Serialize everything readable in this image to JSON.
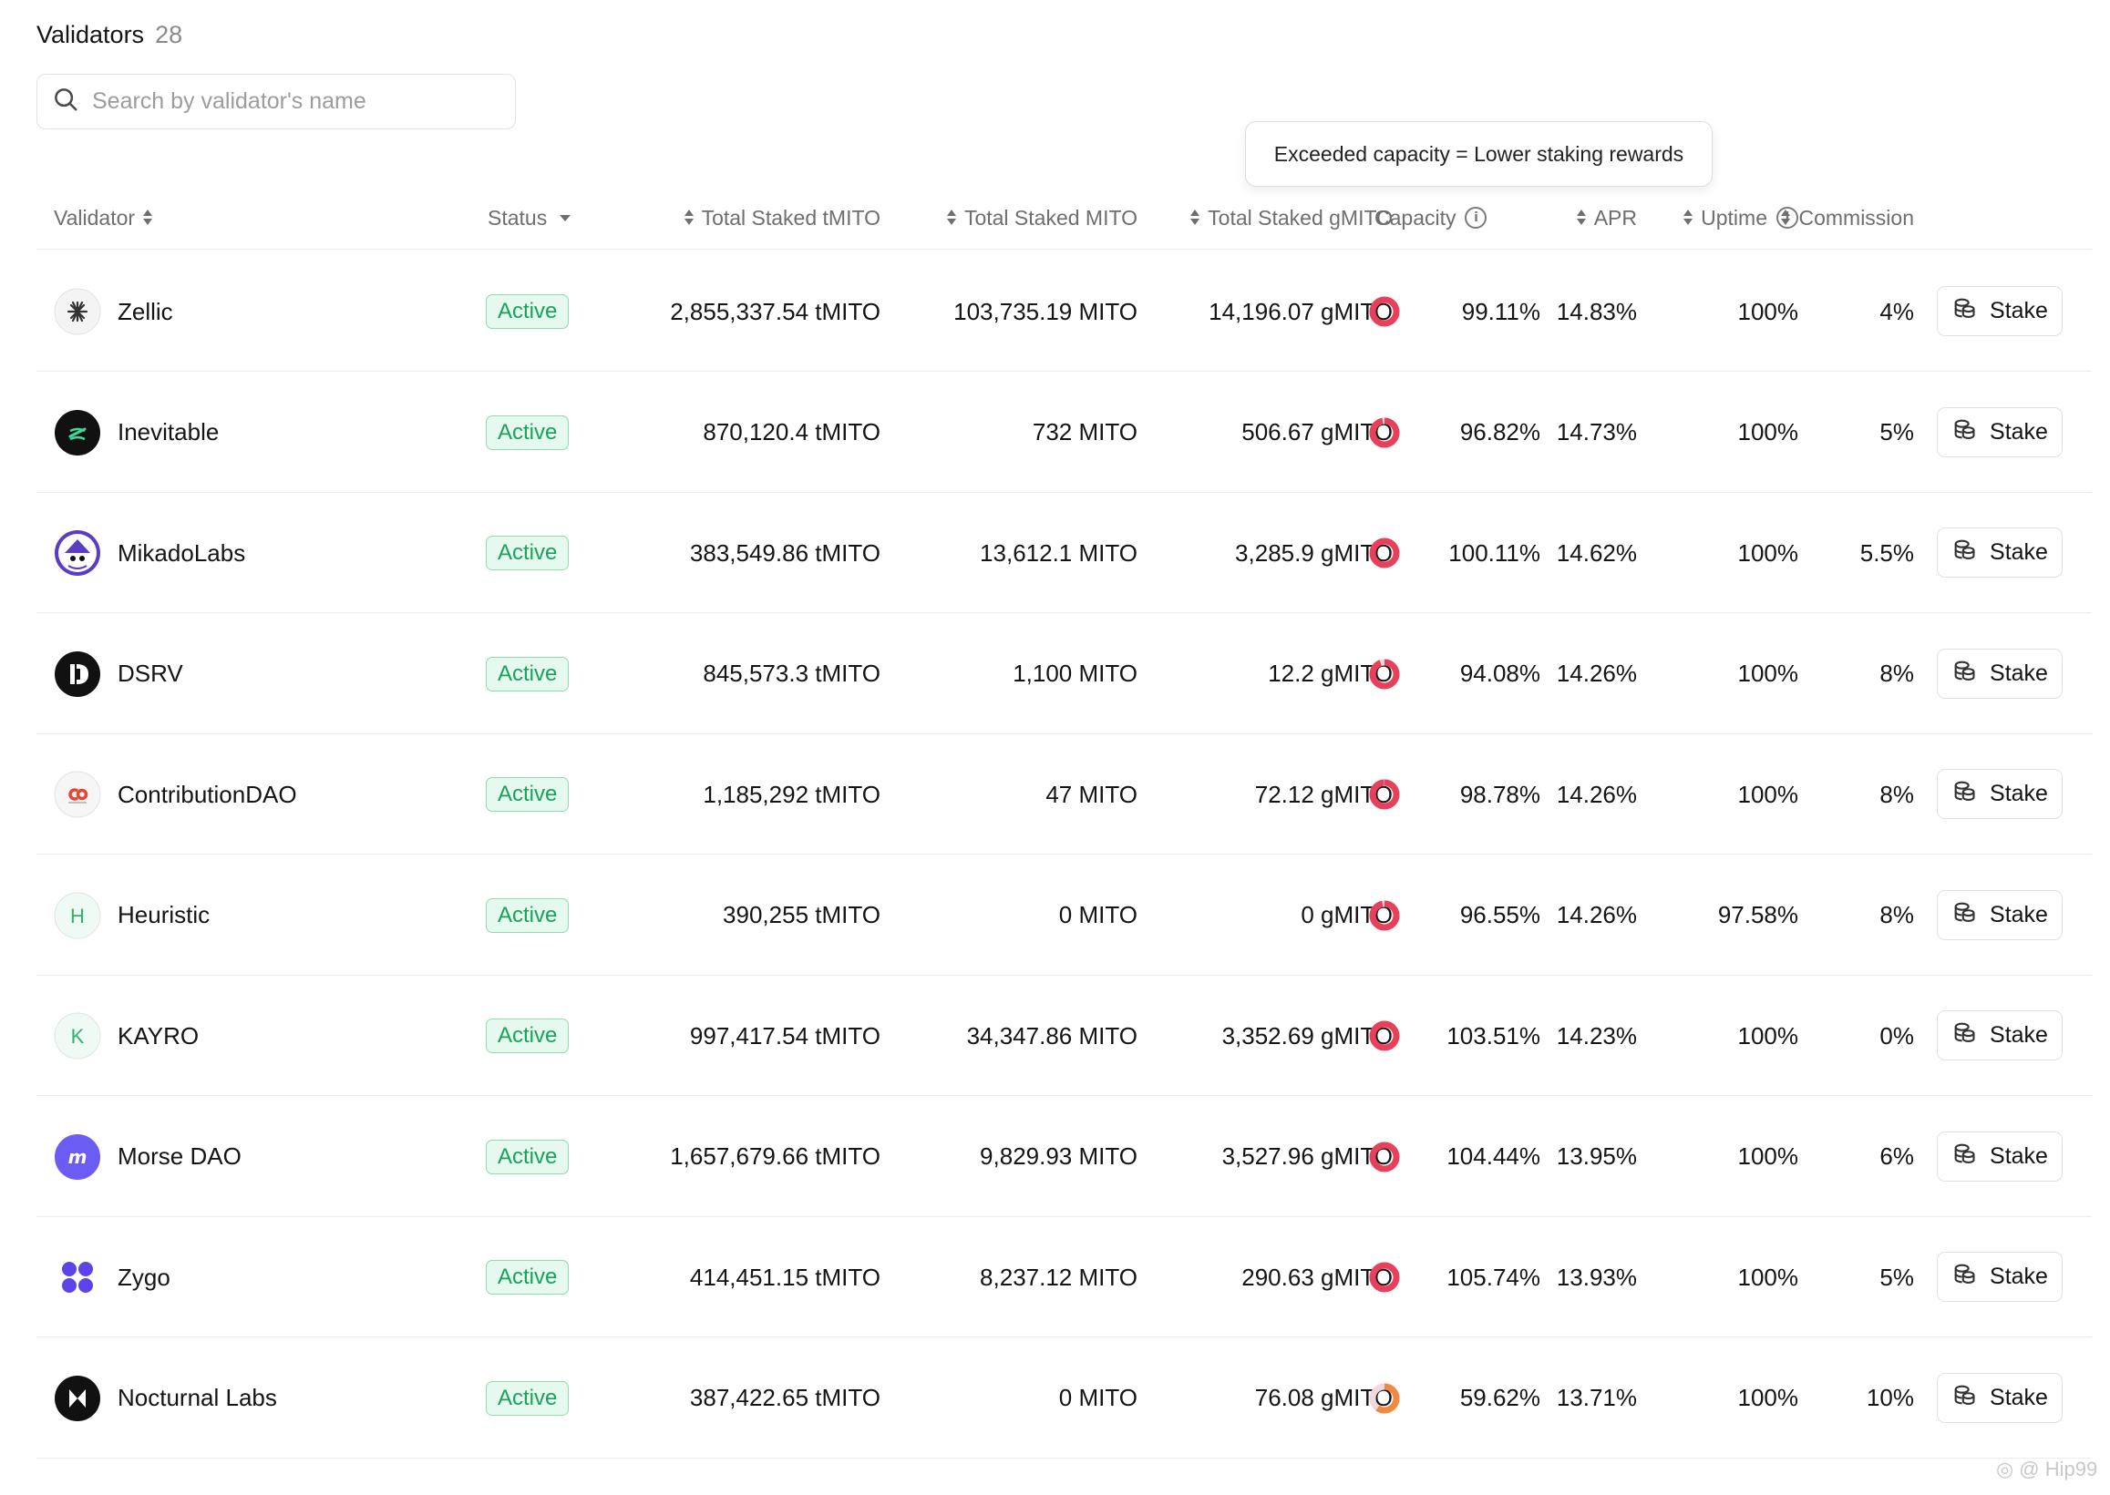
{
  "header": {
    "title": "Validators",
    "count": "28"
  },
  "search": {
    "placeholder": "Search by validator's name",
    "value": ""
  },
  "tooltip": {
    "text": "Exceeded capacity = Lower staking rewards"
  },
  "columns": {
    "validator": "Validator",
    "status": "Status",
    "tmito": "Total Staked tMITO",
    "mito": "Total Staked MITO",
    "gmito": "Total Staked gMITO",
    "capacity": "Capacity",
    "apr": "APR",
    "uptime": "Uptime",
    "commission": "Commission"
  },
  "colors": {
    "active_bg": "#e6f9ee",
    "active_border": "#8fdcad",
    "active_text": "#19a35a",
    "capacity_over": "#e8405a",
    "capacity_under": "#f08a3e"
  },
  "rows": [
    {
      "name": "Zellic",
      "icon": "zellic-logo",
      "status": "Active",
      "tmito": "2,855,337.54 tMITO",
      "mito": "103,735.19 MITO",
      "gmito": "14,196.07 gMITO",
      "capacity": "99.11%",
      "capacity_pct": 99.11,
      "apr": "14.83%",
      "uptime": "100%",
      "commission": "4%",
      "action": "Stake"
    },
    {
      "name": "Inevitable",
      "icon": "inevitable-logo",
      "status": "Active",
      "tmito": "870,120.4 tMITO",
      "mito": "732 MITO",
      "gmito": "506.67 gMITO",
      "capacity": "96.82%",
      "capacity_pct": 96.82,
      "apr": "14.73%",
      "uptime": "100%",
      "commission": "5%",
      "action": "Stake"
    },
    {
      "name": "MikadoLabs",
      "icon": "mikadolabs-logo",
      "status": "Active",
      "tmito": "383,549.86 tMITO",
      "mito": "13,612.1 MITO",
      "gmito": "3,285.9 gMITO",
      "capacity": "100.11%",
      "capacity_pct": 100.11,
      "apr": "14.62%",
      "uptime": "100%",
      "commission": "5.5%",
      "action": "Stake"
    },
    {
      "name": "DSRV",
      "icon": "dsrv-logo",
      "status": "Active",
      "tmito": "845,573.3 tMITO",
      "mito": "1,100 MITO",
      "gmito": "12.2 gMITO",
      "capacity": "94.08%",
      "capacity_pct": 94.08,
      "apr": "14.26%",
      "uptime": "100%",
      "commission": "8%",
      "action": "Stake"
    },
    {
      "name": "ContributionDAO",
      "icon": "contributiondao-logo",
      "status": "Active",
      "tmito": "1,185,292 tMITO",
      "mito": "47 MITO",
      "gmito": "72.12 gMITO",
      "capacity": "98.78%",
      "capacity_pct": 98.78,
      "apr": "14.26%",
      "uptime": "100%",
      "commission": "8%",
      "action": "Stake"
    },
    {
      "name": "Heuristic",
      "icon": "letter-h-avatar",
      "initial": "H",
      "status": "Active",
      "tmito": "390,255 tMITO",
      "mito": "0 MITO",
      "gmito": "0 gMITO",
      "capacity": "96.55%",
      "capacity_pct": 96.55,
      "apr": "14.26%",
      "uptime": "97.58%",
      "commission": "8%",
      "action": "Stake"
    },
    {
      "name": "KAYRO",
      "icon": "letter-k-avatar",
      "initial": "K",
      "status": "Active",
      "tmito": "997,417.54 tMITO",
      "mito": "34,347.86 MITO",
      "gmito": "3,352.69 gMITO",
      "capacity": "103.51%",
      "capacity_pct": 103.51,
      "apr": "14.23%",
      "uptime": "100%",
      "commission": "0%",
      "action": "Stake"
    },
    {
      "name": "Morse DAO",
      "icon": "morsedao-logo",
      "status": "Active",
      "tmito": "1,657,679.66 tMITO",
      "mito": "9,829.93 MITO",
      "gmito": "3,527.96 gMITO",
      "capacity": "104.44%",
      "capacity_pct": 104.44,
      "apr": "13.95%",
      "uptime": "100%",
      "commission": "6%",
      "action": "Stake"
    },
    {
      "name": "Zygo",
      "icon": "zygo-logo",
      "status": "Active",
      "tmito": "414,451.15 tMITO",
      "mito": "8,237.12 MITO",
      "gmito": "290.63 gMITO",
      "capacity": "105.74%",
      "capacity_pct": 105.74,
      "apr": "13.93%",
      "uptime": "100%",
      "commission": "5%",
      "action": "Stake"
    },
    {
      "name": "Nocturnal Labs",
      "icon": "nocturnallabs-logo",
      "status": "Active",
      "tmito": "387,422.65 tMITO",
      "mito": "0 MITO",
      "gmito": "76.08 gMITO",
      "capacity": "59.62%",
      "capacity_pct": 59.62,
      "apr": "13.71%",
      "uptime": "100%",
      "commission": "10%",
      "action": "Stake"
    }
  ]
}
